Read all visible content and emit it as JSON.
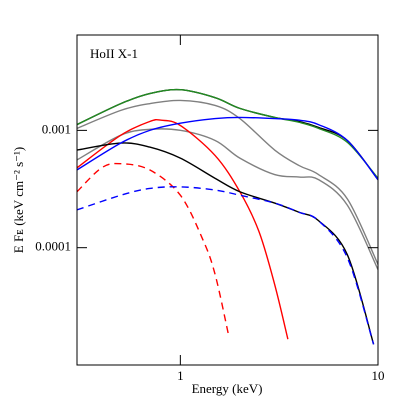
{
  "chart_data": {
    "type": "line",
    "annotation": "HoII X-1",
    "xlabel": "Energy (keV)",
    "ylabel": "E Fᴇ (keV cm⁻² s⁻¹)",
    "xscale": "log",
    "yscale": "log",
    "xlim": [
      0.3,
      10
    ],
    "ylim": [
      1e-05,
      0.0065
    ],
    "xticks": [
      1,
      10
    ],
    "yticks": [
      0.0001,
      0.001
    ],
    "series": [
      {
        "color": "#000000",
        "style": "solid",
        "x": [
          0.3,
          0.5,
          0.7,
          1,
          1.5,
          2,
          3,
          4,
          5,
          7,
          10
        ],
        "values": [
          0.00112,
          0.00169,
          0.00206,
          0.00222,
          0.0019,
          0.00154,
          0.00129,
          0.00119,
          0.00106,
          0.00082,
          0.00038
        ]
      },
      {
        "color": "#228b22",
        "style": "thin",
        "x": [
          0.3,
          0.5,
          0.7,
          1,
          1.5,
          2,
          3,
          4,
          5,
          7,
          10
        ],
        "values": [
          0.00112,
          0.00169,
          0.00206,
          0.00222,
          0.0019,
          0.00154,
          0.00129,
          0.00117,
          0.00104,
          0.00079,
          0.00039
        ]
      },
      {
        "color": "#808080",
        "style": "thin",
        "x": [
          0.3,
          0.5,
          0.7,
          1,
          1.5,
          2,
          3,
          4,
          5,
          7,
          10
        ],
        "values": [
          0.00104,
          0.00148,
          0.00169,
          0.0018,
          0.00163,
          0.00126,
          0.00068,
          0.0005,
          0.00042,
          0.00026,
          7.2e-05
        ]
      },
      {
        "color": "#808080",
        "style": "thin",
        "x": [
          0.3,
          0.5,
          0.7,
          1,
          1.5,
          2,
          3,
          4,
          5,
          7,
          10
        ],
        "values": [
          0.00056,
          0.00091,
          0.00102,
          0.001,
          0.00082,
          0.00058,
          0.00042,
          0.0004,
          0.00038,
          0.00023,
          6.5e-05
        ]
      },
      {
        "color": "#ff0000",
        "style": "solid",
        "x": [
          0.3,
          0.5,
          0.7,
          0.8,
          1,
          1.5,
          2,
          2.5,
          3,
          3.5
        ],
        "values": [
          0.00048,
          0.00091,
          0.00119,
          0.00122,
          0.0011,
          0.00061,
          0.0003,
          0.000137,
          4.86e-05,
          1.66e-05
        ]
      },
      {
        "color": "#ff0000",
        "style": "dashed",
        "x": [
          0.3,
          0.4,
          0.5,
          0.7,
          1,
          1.3,
          1.5,
          1.75
        ],
        "values": [
          0.0003,
          0.00048,
          0.00052,
          0.00046,
          0.00028,
          0.000117,
          5.9e-05,
          1.83e-05
        ]
      },
      {
        "color": "#000000",
        "style": "solid",
        "x": [
          0.3,
          0.5,
          0.7,
          1,
          1.5,
          2,
          3,
          4,
          5,
          7,
          9.5
        ],
        "values": [
          0.00068,
          0.00078,
          0.00072,
          0.00058,
          0.00039,
          0.0003,
          0.00024,
          0.0002,
          0.00017,
          8.7e-05,
          1.5e-05
        ]
      },
      {
        "color": "#0000ff",
        "style": "solid",
        "x": [
          0.3,
          0.5,
          0.7,
          1,
          1.5,
          2,
          3,
          4,
          5,
          7,
          10
        ],
        "values": [
          0.00046,
          0.00078,
          0.001,
          0.00115,
          0.00126,
          0.00129,
          0.00126,
          0.00122,
          0.00112,
          0.00082,
          0.00038
        ]
      },
      {
        "color": "#0000ff",
        "style": "dashed",
        "x": [
          0.3,
          0.5,
          0.7,
          1,
          1.5,
          2,
          3,
          4,
          5,
          7,
          9.5
        ],
        "values": [
          0.00021,
          0.00028,
          0.00032,
          0.00033,
          0.00031,
          0.00028,
          0.00024,
          0.0002,
          0.00017,
          8.2e-05,
          1.5e-05
        ]
      }
    ]
  }
}
